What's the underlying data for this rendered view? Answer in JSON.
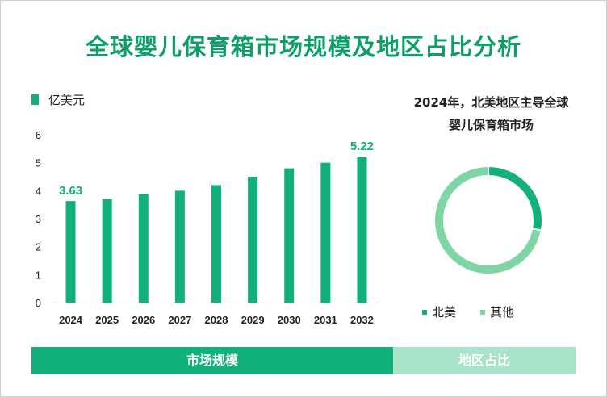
{
  "title": "全球婴儿保育箱市场规模及地区占比分析",
  "bar_legend": "亿美元",
  "pie_title_line1": "2024年，北美地区主导全球",
  "pie_title_line2": "婴儿保育箱市场",
  "footer": {
    "left": "市场规模",
    "right": "地区占比"
  },
  "colors": {
    "bar": "#12b07a",
    "north_america": "#12b07a",
    "other": "#7ed6a5",
    "title": "#0e9e68"
  },
  "chart_data": [
    {
      "type": "bar",
      "categories": [
        "2024",
        "2025",
        "2026",
        "2027",
        "2028",
        "2029",
        "2030",
        "2031",
        "2032"
      ],
      "values": [
        3.63,
        3.7,
        3.88,
        4.0,
        4.2,
        4.5,
        4.8,
        5.0,
        5.22
      ],
      "data_labels": {
        "2024": "3.63",
        "2032": "5.22"
      },
      "yticks": [
        "0",
        "1",
        "2",
        "3",
        "4",
        "5",
        "6"
      ],
      "ylim": [
        0,
        6
      ],
      "legend": [
        "亿美元"
      ],
      "legend_position": "top-left",
      "grid": false
    },
    {
      "type": "pie",
      "style": "donut",
      "labels": [
        "北美",
        "其他"
      ],
      "values": [
        0.28,
        0.72
      ],
      "legend_position": "bottom"
    }
  ]
}
